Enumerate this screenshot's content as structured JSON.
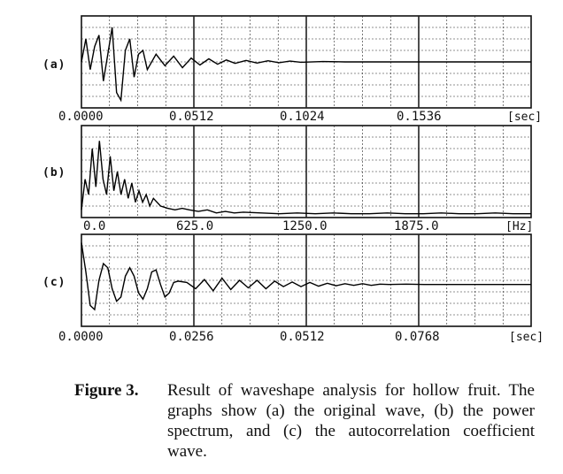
{
  "chart_data": [
    {
      "type": "line",
      "panel_label": "(a)",
      "x_ticks": [
        "0.0000",
        "0.0512",
        "0.1024",
        "0.1536"
      ],
      "x_unit": "[sec]",
      "xlim": [
        0,
        0.2048
      ],
      "x": [
        0.0,
        0.002,
        0.004,
        0.006,
        0.008,
        0.01,
        0.012,
        0.014,
        0.016,
        0.018,
        0.02,
        0.022,
        0.024,
        0.026,
        0.028,
        0.03,
        0.034,
        0.038,
        0.042,
        0.046,
        0.05,
        0.054,
        0.058,
        0.062,
        0.066,
        0.07,
        0.075,
        0.08,
        0.085,
        0.09,
        0.095,
        0.1,
        0.11,
        0.12,
        0.13,
        0.14,
        0.15,
        0.16,
        0.17,
        0.18,
        0.19,
        0.2048
      ],
      "y": [
        0.0,
        0.6,
        -0.2,
        0.4,
        0.7,
        -0.5,
        0.2,
        0.9,
        -0.8,
        -1.0,
        0.3,
        0.6,
        -0.4,
        0.2,
        0.3,
        -0.2,
        0.2,
        -0.1,
        0.15,
        -0.15,
        0.1,
        -0.08,
        0.08,
        -0.06,
        0.05,
        -0.04,
        0.04,
        -0.03,
        0.03,
        -0.02,
        0.02,
        -0.01,
        0.01,
        0.0,
        0.0,
        0.0,
        0.0,
        0.0,
        0.0,
        0.0,
        0.0,
        0.0
      ],
      "ylim": [
        -1.2,
        1.2
      ],
      "grid": true
    },
    {
      "type": "line",
      "panel_label": "(b)",
      "x_ticks": [
        "0.0",
        "625.0",
        "1250.0",
        "1875.0"
      ],
      "x_unit": "[Hz]",
      "xlim": [
        0,
        2500
      ],
      "x": [
        0,
        20,
        40,
        60,
        80,
        100,
        120,
        140,
        160,
        180,
        200,
        220,
        240,
        260,
        280,
        300,
        320,
        340,
        360,
        380,
        400,
        440,
        480,
        520,
        560,
        600,
        650,
        700,
        750,
        800,
        850,
        900,
        1000,
        1100,
        1200,
        1300,
        1400,
        1500,
        1600,
        1700,
        1800,
        1900,
        2000,
        2100,
        2200,
        2300,
        2400,
        2500
      ],
      "y": [
        0.1,
        0.5,
        0.3,
        0.9,
        0.4,
        1.0,
        0.5,
        0.3,
        0.8,
        0.35,
        0.6,
        0.3,
        0.5,
        0.25,
        0.45,
        0.2,
        0.35,
        0.2,
        0.3,
        0.15,
        0.25,
        0.15,
        0.12,
        0.1,
        0.12,
        0.1,
        0.08,
        0.1,
        0.06,
        0.08,
        0.06,
        0.07,
        0.06,
        0.05,
        0.06,
        0.05,
        0.06,
        0.05,
        0.05,
        0.06,
        0.05,
        0.05,
        0.06,
        0.05,
        0.05,
        0.06,
        0.05,
        0.05
      ],
      "ylim": [
        0,
        1.2
      ],
      "grid": true
    },
    {
      "type": "line",
      "panel_label": "(c)",
      "x_ticks": [
        "0.0000",
        "0.0256",
        "0.0512",
        "0.0768"
      ],
      "x_unit": "[sec]",
      "xlim": [
        0,
        0.1024
      ],
      "x": [
        0.0,
        0.001,
        0.002,
        0.003,
        0.004,
        0.005,
        0.006,
        0.007,
        0.008,
        0.009,
        0.01,
        0.011,
        0.012,
        0.013,
        0.014,
        0.015,
        0.016,
        0.017,
        0.018,
        0.019,
        0.02,
        0.021,
        0.022,
        0.024,
        0.026,
        0.028,
        0.03,
        0.032,
        0.034,
        0.036,
        0.038,
        0.04,
        0.042,
        0.044,
        0.046,
        0.048,
        0.05,
        0.052,
        0.054,
        0.056,
        0.058,
        0.06,
        0.062,
        0.064,
        0.066,
        0.068,
        0.07,
        0.074,
        0.078,
        0.082,
        0.086,
        0.09,
        0.094,
        0.098,
        0.1024
      ],
      "y": [
        1.0,
        0.3,
        -0.5,
        -0.6,
        0.1,
        0.5,
        0.4,
        -0.1,
        -0.4,
        -0.3,
        0.2,
        0.4,
        0.2,
        -0.2,
        -0.35,
        -0.1,
        0.3,
        0.35,
        0.0,
        -0.3,
        -0.2,
        0.05,
        0.08,
        0.05,
        -0.1,
        0.12,
        -0.15,
        0.15,
        -0.12,
        0.1,
        -0.08,
        0.1,
        -0.1,
        0.08,
        -0.05,
        0.06,
        -0.05,
        0.05,
        -0.04,
        0.03,
        -0.03,
        0.02,
        -0.02,
        0.02,
        -0.02,
        0.01,
        0.0,
        0.01,
        0.0,
        0.0,
        0.0,
        0.0,
        0.0,
        0.0,
        0.0
      ],
      "ylim": [
        -1.0,
        1.2
      ],
      "grid": true
    }
  ],
  "caption": {
    "label": "Figure 3.",
    "text": "Result of waveshape analysis for hollow fruit. The graphs show (a) the original wave, (b) the power spectrum, and (c) the autocorrelation coefficient wave."
  }
}
